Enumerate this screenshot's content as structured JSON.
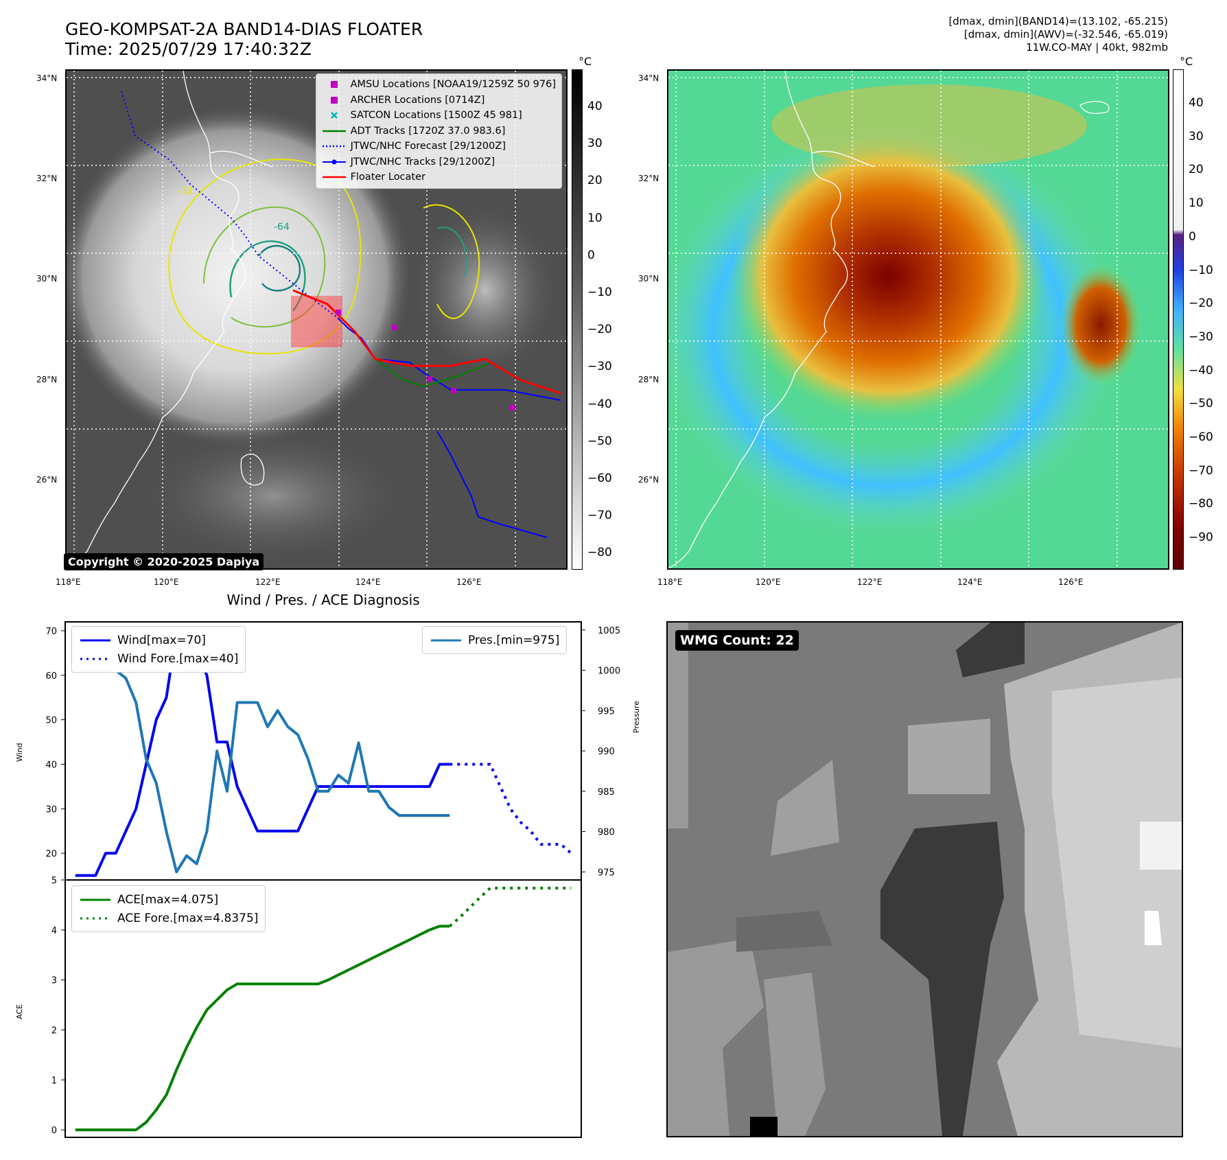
{
  "header": {
    "title_line1": "GEO-KOMPSAT-2A BAND14-DIAS FLOATER",
    "title_line2": "Time: 2025/07/29 17:40:32Z",
    "info_line1": "[dmax, dmin](BAND14)=(13.102, -65.215)",
    "info_line2": "[dmax, dmin](AWV)=(-32.546, -65.019)",
    "info_line3": "11W.CO-MAY | 40kt, 982mb"
  },
  "maps": {
    "lat_labels": [
      "34°N",
      "32°N",
      "30°N",
      "28°N",
      "26°N"
    ],
    "lon_labels": [
      "118°E",
      "120°E",
      "122°E",
      "124°E",
      "126°E"
    ],
    "unit": "°C",
    "ir_colorbar_ticks": [
      "40",
      "30",
      "20",
      "10",
      "0",
      "−10",
      "−20",
      "−30",
      "−40",
      "−50",
      "−60",
      "−70",
      "−80"
    ],
    "awv_colorbar_ticks": [
      "40",
      "30",
      "20",
      "10",
      "0",
      "−10",
      "−20",
      "−30",
      "−40",
      "−50",
      "−60",
      "−70",
      "−80",
      "−90"
    ],
    "contour_labels": [
      "-31",
      "-64"
    ],
    "copyright": "Copyright © 2020-2025 Dapiya",
    "legend": [
      {
        "label": "AMSU Locations [NOAA19/1259Z 50 976]",
        "color": "#c000c0",
        "symbol": "square"
      },
      {
        "label": "ARCHER Locations [0714Z]",
        "color": "#c000c0",
        "symbol": "square"
      },
      {
        "label": "SATCON Locations [1500Z 45 981]",
        "color": "#00b5b5",
        "symbol": "x"
      },
      {
        "label": "ADT Tracks [1720Z 37.0 983.6]",
        "color": "#008000",
        "symbol": "line"
      },
      {
        "label": "JTWC/NHC Forecast [29/1200Z]",
        "color": "#0000ff",
        "symbol": "dotted"
      },
      {
        "label": "JTWC/NHC Tracks [29/1200Z]",
        "color": "#0000ff",
        "symbol": "line-dot"
      },
      {
        "label": "Floater Locater",
        "color": "#ff0000",
        "symbol": "line"
      }
    ]
  },
  "wmg": {
    "label": "WMG Count: 22"
  },
  "chart_data": [
    {
      "type": "line",
      "title": "Wind / Pres. / ACE Diagnosis",
      "ylabel": "Wind",
      "ylabel_right": "Pressure",
      "ylim": [
        14,
        72
      ],
      "ylim_right": [
        974,
        1006
      ],
      "yticks": [
        20,
        30,
        40,
        50,
        60,
        70
      ],
      "yticks_right": [
        975,
        980,
        985,
        990,
        995,
        1000,
        1005
      ],
      "series": [
        {
          "name": "Wind[max=70]",
          "color": "#0000ee",
          "style": "solid",
          "axis": "left",
          "x": [
            0,
            1,
            2,
            3,
            4,
            5,
            6,
            7,
            8,
            9,
            10,
            11,
            12,
            13,
            14,
            15,
            16,
            17,
            18,
            19,
            20,
            21,
            22,
            23,
            24,
            25,
            26,
            27,
            28,
            29,
            30,
            31,
            32,
            33,
            34,
            35,
            36,
            37
          ],
          "values": [
            15,
            15,
            15,
            20,
            20,
            25,
            30,
            40,
            50,
            55,
            70,
            65,
            65,
            60,
            45,
            45,
            35,
            30,
            25,
            25,
            25,
            25,
            25,
            30,
            35,
            35,
            35,
            35,
            35,
            35,
            35,
            35,
            35,
            35,
            35,
            35,
            40,
            40
          ]
        },
        {
          "name": "Wind Fore.[max=40]",
          "color": "#0000ee",
          "style": "dotted",
          "axis": "left",
          "x": [
            37,
            38,
            39,
            40,
            41,
            42,
            43,
            44,
            45,
            46,
            47,
            48,
            49
          ],
          "values": [
            40,
            40,
            40,
            40,
            40,
            35,
            30,
            27,
            25,
            22,
            22,
            22,
            20
          ]
        },
        {
          "name": "Pres.[min=975]",
          "color": "#1f77b4",
          "style": "solid",
          "axis": "right",
          "x": [
            0,
            1,
            2,
            3,
            4,
            5,
            6,
            7,
            8,
            9,
            10,
            11,
            12,
            13,
            14,
            15,
            16,
            17,
            18,
            19,
            20,
            21,
            22,
            23,
            24,
            25,
            26,
            27,
            28,
            29,
            30,
            31,
            32,
            33,
            34,
            35,
            36,
            37
          ],
          "values": [
            1005,
            1005,
            1005,
            1003,
            1000,
            999,
            996,
            989,
            986,
            980,
            975,
            977,
            976,
            980,
            990,
            985,
            996,
            996,
            996,
            993,
            995,
            993,
            992,
            989,
            985,
            985,
            987,
            986,
            991,
            985,
            985,
            983,
            982,
            982,
            982,
            982,
            982,
            982
          ]
        }
      ]
    },
    {
      "type": "line",
      "ylabel": "ACE",
      "ylim": [
        -0.15,
        5
      ],
      "yticks": [
        0,
        1,
        2,
        3,
        4,
        5
      ],
      "series": [
        {
          "name": "ACE[max=4.075]",
          "color": "#008000",
          "style": "solid",
          "x": [
            0,
            1,
            2,
            3,
            4,
            5,
            6,
            7,
            8,
            9,
            10,
            11,
            12,
            13,
            14,
            15,
            16,
            17,
            18,
            19,
            20,
            21,
            22,
            23,
            24,
            25,
            26,
            27,
            28,
            29,
            30,
            31,
            32,
            33,
            34,
            35,
            36,
            37
          ],
          "values": [
            0,
            0,
            0,
            0,
            0,
            0,
            0,
            0.15,
            0.4,
            0.7,
            1.2,
            1.65,
            2.05,
            2.4,
            2.6,
            2.8,
            2.92,
            2.92,
            2.92,
            2.92,
            2.92,
            2.92,
            2.92,
            2.92,
            2.92,
            3.0,
            3.1,
            3.2,
            3.3,
            3.4,
            3.5,
            3.6,
            3.7,
            3.8,
            3.9,
            4.0,
            4.075,
            4.075
          ]
        },
        {
          "name": "ACE Fore.[max=4.8375]",
          "color": "#008000",
          "style": "dotted",
          "x": [
            37,
            38,
            39,
            40,
            41,
            42,
            43,
            44,
            45,
            46,
            47,
            48,
            49
          ],
          "values": [
            4.075,
            4.25,
            4.45,
            4.65,
            4.8375,
            4.8375,
            4.8375,
            4.8375,
            4.8375,
            4.8375,
            4.8375,
            4.8375,
            4.8375
          ]
        }
      ]
    }
  ]
}
